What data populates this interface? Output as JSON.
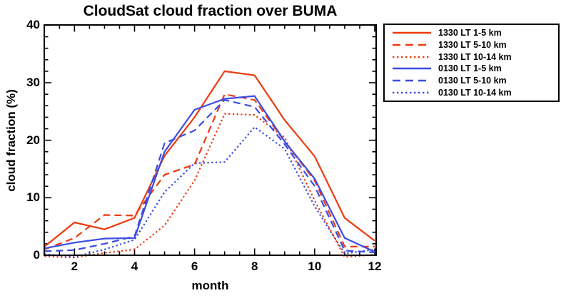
{
  "title": "CloudSat cloud fraction over BUMA",
  "axes": {
    "xlabel": "month",
    "ylabel": "cloud fraction (%)",
    "x_ticks": [
      2,
      4,
      6,
      8,
      10,
      12
    ],
    "y_ticks": [
      0,
      10,
      20,
      30,
      40
    ],
    "x_minor_step": 0.5,
    "y_minor_step": 2
  },
  "colors": {
    "red": "#ee3a0e",
    "blue": "#3b4ce4",
    "axis": "#000000",
    "background": "#ffffff"
  },
  "chart_data": {
    "type": "line",
    "title": "CloudSat cloud fraction over BUMA",
    "xlabel": "month",
    "ylabel": "cloud fraction (%)",
    "xlim": [
      1,
      12
    ],
    "ylim": [
      0,
      40
    ],
    "grid": false,
    "legend_position": "outside-top-right",
    "x": [
      1,
      2,
      3,
      4,
      5,
      6,
      7,
      8,
      9,
      10,
      11,
      12
    ],
    "series": [
      {
        "name": "1330 LT 1-5 km",
        "color": "#ee3a0e",
        "style": "solid",
        "values": [
          1.5,
          5.7,
          4.5,
          6.5,
          17.3,
          24.0,
          32.0,
          31.3,
          23.5,
          17.2,
          6.5,
          2.5
        ]
      },
      {
        "name": "1330 LT 5-10 km",
        "color": "#ee3a0e",
        "style": "dashed",
        "values": [
          1.0,
          3.0,
          7.0,
          6.9,
          14.0,
          15.8,
          28.0,
          27.0,
          19.8,
          13.0,
          1.5,
          1.5
        ]
      },
      {
        "name": "1330 LT 10-14 km",
        "color": "#ee3a0e",
        "style": "dotted",
        "values": [
          -0.2,
          -0.4,
          0.4,
          1.0,
          5.2,
          13.0,
          24.6,
          24.4,
          20.5,
          9.5,
          -0.3,
          0.1
        ]
      },
      {
        "name": "0130 LT 1-5 km",
        "color": "#3b4ce4",
        "style": "solid",
        "values": [
          1.2,
          2.2,
          2.9,
          3.0,
          18.0,
          25.3,
          27.2,
          27.7,
          19.8,
          13.3,
          3.0,
          0.6
        ]
      },
      {
        "name": "0130 LT 5-10 km",
        "color": "#3b4ce4",
        "style": "dashed",
        "values": [
          0.7,
          0.9,
          2.0,
          3.3,
          19.5,
          21.7,
          27.0,
          25.8,
          19.3,
          12.0,
          0.8,
          0.5
        ]
      },
      {
        "name": "0130 LT 10-14 km",
        "color": "#3b4ce4",
        "style": "dotted",
        "values": [
          0.2,
          -0.3,
          1.0,
          2.7,
          11.0,
          16.0,
          16.2,
          22.3,
          18.5,
          8.5,
          0.3,
          1.0
        ]
      }
    ]
  }
}
